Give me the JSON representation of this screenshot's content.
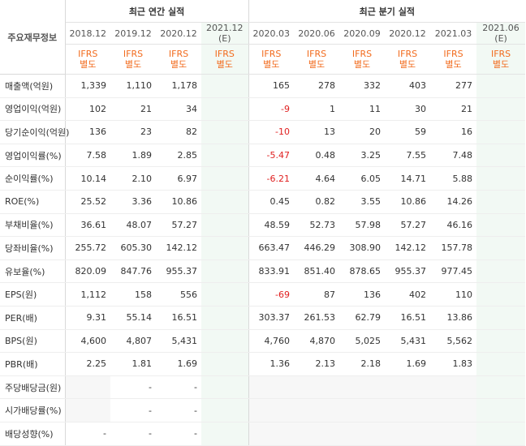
{
  "header": {
    "row_title": "주요재무정보",
    "annual_group": "최근 연간 실적",
    "quarter_group": "최근 분기 실적",
    "ifrs_line1": "IFRS",
    "ifrs_line2": "별도",
    "annual_periods": [
      "2018.12",
      "2019.12",
      "2020.12",
      "2021.12 (E)"
    ],
    "quarter_periods": [
      "2020.03",
      "2020.06",
      "2020.09",
      "2020.12",
      "2021.03",
      "2021.06 (E)"
    ]
  },
  "rows": [
    {
      "label": "매출액(억원)",
      "annual": [
        "1,339",
        "1,110",
        "1,178",
        ""
      ],
      "quarter": [
        "165",
        "278",
        "332",
        "403",
        "277",
        ""
      ]
    },
    {
      "label": "영업이익(억원)",
      "annual": [
        "102",
        "21",
        "34",
        ""
      ],
      "quarter": [
        "-9",
        "1",
        "11",
        "30",
        "21",
        ""
      ]
    },
    {
      "label": "당기순이익(억원)",
      "annual": [
        "136",
        "23",
        "82",
        ""
      ],
      "quarter": [
        "-10",
        "13",
        "20",
        "59",
        "16",
        ""
      ]
    },
    {
      "label": "영업이익률(%)",
      "annual": [
        "7.58",
        "1.89",
        "2.85",
        ""
      ],
      "quarter": [
        "-5.47",
        "0.48",
        "3.25",
        "7.55",
        "7.48",
        ""
      ]
    },
    {
      "label": "순이익률(%)",
      "annual": [
        "10.14",
        "2.10",
        "6.97",
        ""
      ],
      "quarter": [
        "-6.21",
        "4.64",
        "6.05",
        "14.71",
        "5.88",
        ""
      ]
    },
    {
      "label": "ROE(%)",
      "annual": [
        "25.52",
        "3.36",
        "10.86",
        ""
      ],
      "quarter": [
        "0.45",
        "0.82",
        "3.55",
        "10.86",
        "14.26",
        ""
      ]
    },
    {
      "label": "부채비율(%)",
      "annual": [
        "36.61",
        "48.07",
        "57.27",
        ""
      ],
      "quarter": [
        "48.59",
        "52.73",
        "57.98",
        "57.27",
        "46.16",
        ""
      ]
    },
    {
      "label": "당좌비율(%)",
      "annual": [
        "255.72",
        "605.30",
        "142.12",
        ""
      ],
      "quarter": [
        "663.47",
        "446.29",
        "308.90",
        "142.12",
        "157.78",
        ""
      ]
    },
    {
      "label": "유보율(%)",
      "annual": [
        "820.09",
        "847.76",
        "955.37",
        ""
      ],
      "quarter": [
        "833.91",
        "851.40",
        "878.65",
        "955.37",
        "977.45",
        ""
      ]
    },
    {
      "label": "EPS(원)",
      "annual": [
        "1,112",
        "158",
        "556",
        ""
      ],
      "quarter": [
        "-69",
        "87",
        "136",
        "402",
        "110",
        ""
      ]
    },
    {
      "label": "PER(배)",
      "annual": [
        "9.31",
        "55.14",
        "16.51",
        ""
      ],
      "quarter": [
        "303.37",
        "261.53",
        "62.79",
        "16.51",
        "13.86",
        ""
      ]
    },
    {
      "label": "BPS(원)",
      "annual": [
        "4,600",
        "4,807",
        "5,431",
        ""
      ],
      "quarter": [
        "4,760",
        "4,870",
        "5,025",
        "5,431",
        "5,562",
        ""
      ]
    },
    {
      "label": "PBR(배)",
      "annual": [
        "2.25",
        "1.81",
        "1.69",
        ""
      ],
      "quarter": [
        "1.36",
        "2.13",
        "2.18",
        "1.69",
        "1.83",
        ""
      ]
    },
    {
      "label": "주당배당금(원)",
      "annual": [
        "",
        "-",
        "-",
        ""
      ],
      "quarter": [
        "",
        "",
        "",
        "",
        "",
        ""
      ]
    },
    {
      "label": "시가배당률(%)",
      "annual": [
        "",
        "-",
        "-",
        ""
      ],
      "quarter": [
        "",
        "",
        "",
        "",
        "",
        ""
      ]
    },
    {
      "label": "배당성향(%)",
      "annual": [
        "-",
        "-",
        "-",
        ""
      ],
      "quarter": [
        "",
        "",
        "",
        "",
        "",
        ""
      ]
    }
  ],
  "colors": {
    "negative": "#e02020",
    "ifrs": "#f26b1d",
    "estimate_bg": "#f2f9f4",
    "estimate_text": "#2a8a4a"
  }
}
